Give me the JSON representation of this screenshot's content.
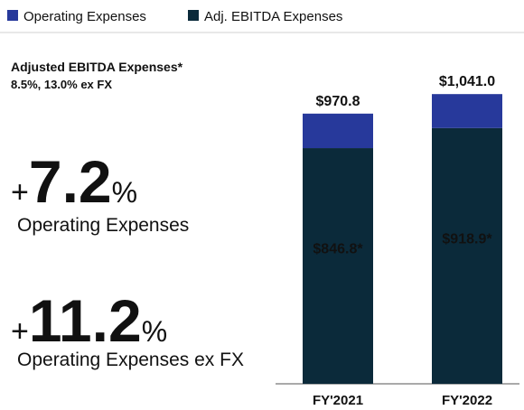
{
  "chart_data": {
    "type": "stacked_bar",
    "categories": [
      "FY'2021",
      "FY'2022"
    ],
    "series": [
      {
        "name": "Operating Expenses",
        "color": "#27399b",
        "values": [
          124.0,
          122.1
        ]
      },
      {
        "name": "Adj. EBITDA Expenses",
        "color": "#0b2a3a",
        "values": [
          846.8,
          918.9
        ],
        "value_labels": [
          "$846.8*",
          "$918.9*"
        ]
      }
    ],
    "stack_order": [
      1,
      0
    ],
    "total_labels": [
      "$970.8",
      "$1,041.0"
    ],
    "ylim": [
      0,
      1100
    ],
    "side_title": "Adjusted EBITDA Expenses*",
    "side_subtitle": "8.5%, 13.0% ex FX",
    "kpis": [
      {
        "prefix": "+",
        "value": 7.2,
        "suffix": "%",
        "label": "Operating Expenses"
      },
      {
        "prefix": "+",
        "value": 11.2,
        "suffix": "%",
        "label": "Operating Expenses ex FX"
      }
    ]
  }
}
